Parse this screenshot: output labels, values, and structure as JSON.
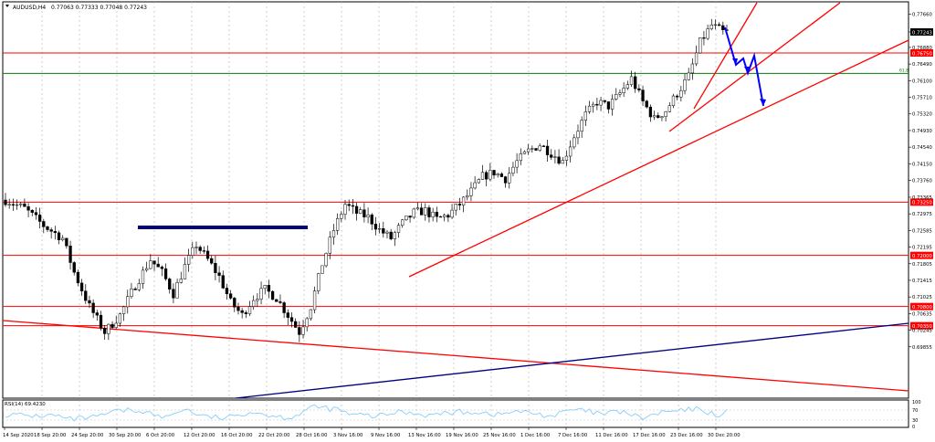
{
  "header": {
    "symbol": "AUDUSD,H4",
    "ohlc": "0.77063 0.77333 0.77048 0.77243"
  },
  "rsi": {
    "label": "RSI(14) 69.4230",
    "levels": [
      "100",
      "70",
      "30",
      "0"
    ]
  },
  "colors": {
    "bull": "#000000",
    "bear": "#000000",
    "support": "#ff0000",
    "trend_blue": "#000080",
    "fib_green": "#008000",
    "projection": "#0000ff",
    "rsi_line": "#87cefa",
    "price_tag": "#ff0000",
    "current_tag": "#000000"
  },
  "chart_data": {
    "type": "candlestick",
    "instrument": "AUDUSD",
    "timeframe": "H4",
    "ylim": [
      0.6865,
      0.7795
    ],
    "y_ticks": [
      "0.77660",
      "0.77243",
      "0.76880",
      "0.76490",
      "0.76100",
      "0.75710",
      "0.75320",
      "0.74930",
      "0.74540",
      "0.74150",
      "0.73760",
      "0.73365",
      "0.72975",
      "0.72585",
      "0.72195",
      "0.71805",
      "0.71415",
      "0.71025",
      "0.70635",
      "0.70245",
      "0.69855"
    ],
    "x_labels": [
      "14 Sep 2020",
      "18 Sep 20:00",
      "24 Sep 20:00",
      "30 Sep 20:00",
      "6 Oct 20:00",
      "12 Oct 20:00",
      "16 Oct 20:00",
      "22 Oct 20:00",
      "28 Oct 16:00",
      "3 Nov 16:00",
      "9 Nov 16:00",
      "13 Nov 16:00",
      "19 Nov 16:00",
      "25 Nov 16:00",
      "1 Dec 16:00",
      "7 Dec 16:00",
      "11 Dec 16:00",
      "17 Dec 16:00",
      "23 Dec 16:00",
      "30 Dec 20:00"
    ],
    "close_path": [
      [
        0,
        0.733
      ],
      [
        5,
        0.731
      ],
      [
        10,
        0.727
      ],
      [
        15,
        0.724
      ],
      [
        18,
        0.716
      ],
      [
        22,
        0.708
      ],
      [
        26,
        0.702
      ],
      [
        30,
        0.706
      ],
      [
        34,
        0.713
      ],
      [
        38,
        0.719
      ],
      [
        41,
        0.716
      ],
      [
        44,
        0.711
      ],
      [
        47,
        0.7175
      ],
      [
        50,
        0.7225
      ],
      [
        53,
        0.719
      ],
      [
        56,
        0.715
      ],
      [
        59,
        0.709
      ],
      [
        62,
        0.706
      ],
      [
        65,
        0.71
      ],
      [
        68,
        0.712
      ],
      [
        71,
        0.71
      ],
      [
        74,
        0.706
      ],
      [
        77,
        0.702
      ],
      [
        80,
        0.708
      ],
      [
        83,
        0.718
      ],
      [
        86,
        0.726
      ],
      [
        89,
        0.732
      ],
      [
        92,
        0.73
      ],
      [
        95,
        0.729
      ],
      [
        98,
        0.726
      ],
      [
        101,
        0.724
      ],
      [
        104,
        0.7275
      ],
      [
        107,
        0.73
      ],
      [
        110,
        0.7305
      ],
      [
        113,
        0.7285
      ],
      [
        116,
        0.7295
      ],
      [
        119,
        0.732
      ],
      [
        122,
        0.735
      ],
      [
        125,
        0.7385
      ],
      [
        128,
        0.7395
      ],
      [
        131,
        0.738
      ],
      [
        134,
        0.742
      ],
      [
        137,
        0.7445
      ],
      [
        140,
        0.746
      ],
      [
        143,
        0.744
      ],
      [
        146,
        0.742
      ],
      [
        149,
        0.748
      ],
      [
        152,
        0.753
      ],
      [
        155,
        0.756
      ],
      [
        158,
        0.755
      ],
      [
        161,
        0.758
      ],
      [
        164,
        0.7615
      ],
      [
        167,
        0.756
      ],
      [
        170,
        0.752
      ],
      [
        173,
        0.754
      ],
      [
        176,
        0.758
      ],
      [
        179,
        0.762
      ],
      [
        182,
        0.77
      ],
      [
        185,
        0.774
      ],
      [
        188,
        0.7724
      ]
    ],
    "horizontal_levels": [
      {
        "value": 0.7675,
        "label": "0.76750",
        "color": "#ff0000"
      },
      {
        "value": 0.7627,
        "label": "61.8",
        "color": "#008000"
      },
      {
        "value": 0.7325,
        "label": "0.73250",
        "color": "#ff0000"
      },
      {
        "value": 0.72,
        "label": "0.72000",
        "color": "#ff0000"
      },
      {
        "value": 0.708,
        "label": "0.70800",
        "color": "#ff0000"
      },
      {
        "value": 0.7035,
        "label": "0.70350",
        "color": "#ff0000"
      }
    ],
    "current_price": {
      "value": 0.77243,
      "label": "0.77243"
    },
    "rsi_value": 69.423
  }
}
